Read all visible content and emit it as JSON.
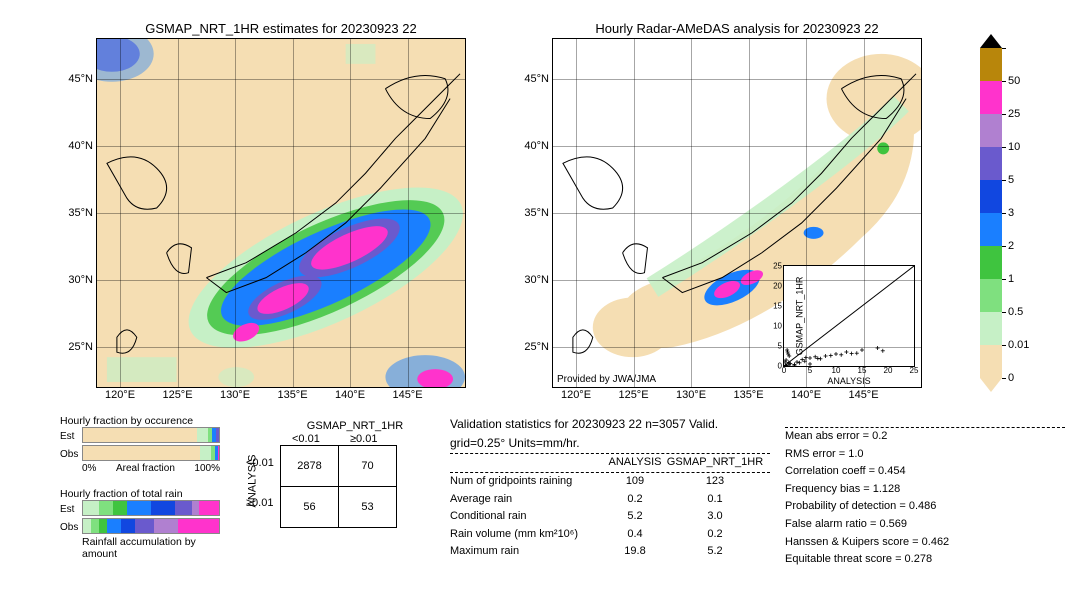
{
  "titles": {
    "left": "GSMAP_NRT_1HR estimates for 20230923 22",
    "right": "Hourly Radar-AMeDAS analysis for 20230923 22"
  },
  "credit": "Provided by JWA/JMA",
  "maps": {
    "xlim": [
      118,
      150
    ],
    "ylim": [
      22,
      48
    ],
    "xticks": [
      "120°E",
      "125°E",
      "130°E",
      "135°E",
      "140°E",
      "145°E"
    ],
    "xtick_vals": [
      120,
      125,
      130,
      135,
      140,
      145
    ],
    "yticks": [
      "25°N",
      "30°N",
      "35°N",
      "40°N",
      "45°N"
    ],
    "ytick_vals": [
      25,
      30,
      35,
      40,
      45
    ],
    "bg": "#f5deb3"
  },
  "colorbar": {
    "tick_labels": [
      "0",
      "0.01",
      "0.5",
      "1",
      "2",
      "3",
      "5",
      "10",
      "25",
      "50"
    ],
    "colors": [
      "#f5deb3",
      "#c6f0c6",
      "#7fe07f",
      "#3fc43f",
      "#1a7fff",
      "#1147e0",
      "#6a5acd",
      "#b080d0",
      "#ff33cc",
      "#b8860b"
    ]
  },
  "hourly_fraction_occ": {
    "title": "Hourly fraction by occurence",
    "rows": [
      "Est",
      "Obs"
    ],
    "xlabels": [
      "0%",
      "Areal fraction",
      "100%"
    ],
    "est_segs": [
      {
        "w": 0.84,
        "c": "#f5deb3"
      },
      {
        "w": 0.08,
        "c": "#c6f0c6"
      },
      {
        "w": 0.03,
        "c": "#7fe07f"
      },
      {
        "w": 0.03,
        "c": "#1a7fff"
      },
      {
        "w": 0.02,
        "c": "#6a5acd"
      }
    ],
    "obs_segs": [
      {
        "w": 0.86,
        "c": "#f5deb3"
      },
      {
        "w": 0.08,
        "c": "#c6f0c6"
      },
      {
        "w": 0.03,
        "c": "#7fe07f"
      },
      {
        "w": 0.02,
        "c": "#1a7fff"
      },
      {
        "w": 0.01,
        "c": "#ff33cc"
      }
    ]
  },
  "hourly_fraction_total": {
    "title": "Hourly fraction of total rain",
    "rows": [
      "Est",
      "Obs"
    ],
    "footer": "Rainfall accumulation by amount",
    "est_segs": [
      {
        "w": 0.12,
        "c": "#c6f0c6"
      },
      {
        "w": 0.1,
        "c": "#7fe07f"
      },
      {
        "w": 0.1,
        "c": "#3fc43f"
      },
      {
        "w": 0.18,
        "c": "#1a7fff"
      },
      {
        "w": 0.18,
        "c": "#1147e0"
      },
      {
        "w": 0.12,
        "c": "#6a5acd"
      },
      {
        "w": 0.05,
        "c": "#b080d0"
      },
      {
        "w": 0.15,
        "c": "#ff33cc"
      }
    ],
    "obs_segs": [
      {
        "w": 0.06,
        "c": "#c6f0c6"
      },
      {
        "w": 0.06,
        "c": "#7fe07f"
      },
      {
        "w": 0.06,
        "c": "#3fc43f"
      },
      {
        "w": 0.1,
        "c": "#1a7fff"
      },
      {
        "w": 0.1,
        "c": "#1147e0"
      },
      {
        "w": 0.14,
        "c": "#6a5acd"
      },
      {
        "w": 0.18,
        "c": "#b080d0"
      },
      {
        "w": 0.3,
        "c": "#ff33cc"
      }
    ]
  },
  "contingency": {
    "col_header": "GSMAP_NRT_1HR",
    "row_header": "ANALYSIS",
    "col_labels": [
      "<0.01",
      "≥0.01"
    ],
    "row_labels": [
      "<0.01",
      "≥0.01"
    ],
    "cells": [
      [
        "2878",
        "70"
      ],
      [
        "56",
        "53"
      ]
    ]
  },
  "validation": {
    "title": "Validation statistics for 20230923 22  n=3057 Valid. grid=0.25° Units=mm/hr.",
    "col1": "ANALYSIS",
    "col2": "GSMAP_NRT_1HR",
    "rows": [
      {
        "label": "Num of gridpoints raining",
        "v1": "109",
        "v2": "123"
      },
      {
        "label": "Average rain",
        "v1": "0.2",
        "v2": "0.1"
      },
      {
        "label": "Conditional rain",
        "v1": "5.2",
        "v2": "3.0"
      },
      {
        "label": "Rain volume (mm km²10⁶)",
        "v1": "0.4",
        "v2": "0.2"
      },
      {
        "label": "Maximum rain",
        "v1": "19.8",
        "v2": "5.2"
      }
    ],
    "stats": [
      "Mean abs error =   0.2",
      "RMS error =   1.0",
      "Correlation coeff = 0.454",
      "Frequency bias = 1.128",
      "Probability of detection = 0.486",
      "False alarm ratio = 0.569",
      "Hanssen & Kuipers score = 0.462",
      "Equitable threat score = 0.278"
    ]
  },
  "scatter": {
    "xlabel": "ANALYSIS",
    "ylabel": "GSMAP_NRT_1HR",
    "lim": [
      0,
      25
    ],
    "ticks": [
      0,
      5,
      10,
      15,
      20,
      25
    ],
    "points": [
      [
        0.3,
        0.2
      ],
      [
        0.5,
        0.1
      ],
      [
        1,
        0.3
      ],
      [
        2,
        0.4
      ],
      [
        3,
        0.8
      ],
      [
        4,
        1.2
      ],
      [
        5,
        2
      ],
      [
        1,
        2.5
      ],
      [
        0.8,
        3
      ],
      [
        2.5,
        1
      ],
      [
        6,
        2.3
      ],
      [
        7,
        1.8
      ],
      [
        8,
        2.5
      ],
      [
        10,
        3
      ],
      [
        12,
        3.5
      ],
      [
        14,
        3.2
      ],
      [
        15,
        4
      ],
      [
        18,
        4.5
      ],
      [
        19,
        3.8
      ],
      [
        5,
        0.5
      ],
      [
        0.2,
        1
      ],
      [
        0.4,
        1.5
      ],
      [
        1.2,
        0.6
      ],
      [
        0.6,
        4
      ],
      [
        0.7,
        3.5
      ],
      [
        9,
        2.6
      ],
      [
        3.5,
        1.6
      ],
      [
        4.2,
        2.1
      ],
      [
        11,
        2.8
      ],
      [
        13,
        3.1
      ],
      [
        6.5,
        1.9
      ],
      [
        2,
        0.2
      ],
      [
        0.9,
        0.9
      ]
    ]
  },
  "colors": {
    "land": "#f5deb3",
    "sea": "#ffffff"
  }
}
